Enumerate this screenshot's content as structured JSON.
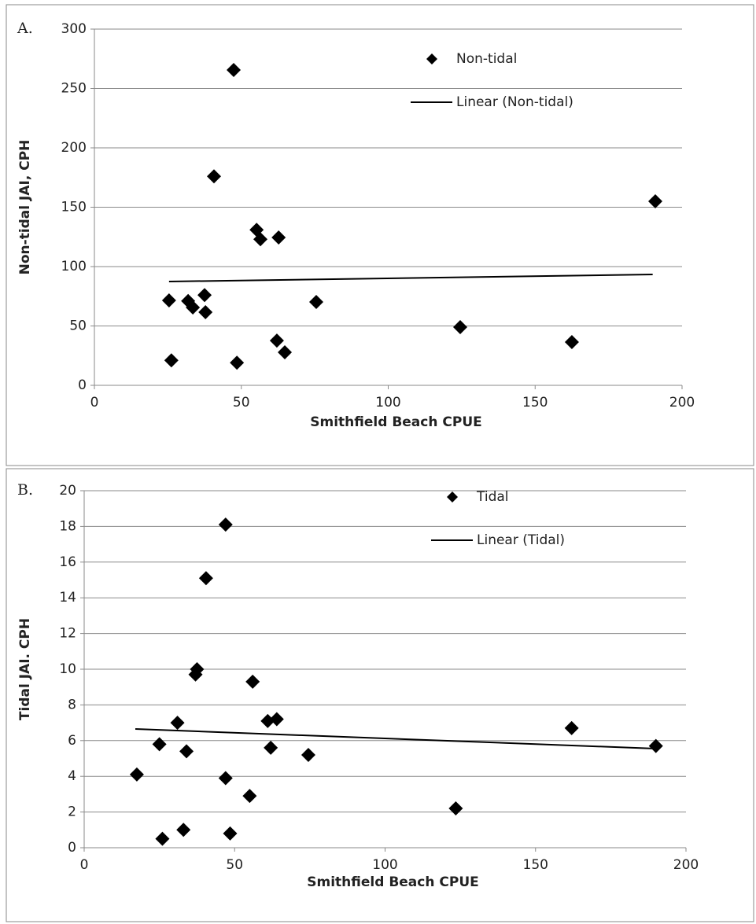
{
  "chart_data": [
    {
      "type": "scatter",
      "panel": "A.",
      "xlabel": "Smithfield Beach CPUE",
      "ylabel": "Non-tidal JAI, CPH",
      "xlim": [
        0,
        200
      ],
      "xticks": [
        0,
        50,
        100,
        150,
        200
      ],
      "ylim": [
        0,
        300
      ],
      "yticks": [
        0,
        50,
        100,
        150,
        200,
        250,
        300
      ],
      "grid": true,
      "series": [
        {
          "name": "Non-tidal",
          "type": "scatter",
          "color": "#000000",
          "x": [
            25.4,
            26.2,
            47.4,
            40.7,
            31.9,
            33.5,
            37.5,
            37.8,
            48.5,
            55.2,
            56.5,
            62.7,
            62.1,
            64.8,
            75.5,
            124.5,
            162.5,
            190.9
          ],
          "values": [
            71.5,
            21,
            265.6,
            176,
            71,
            65.6,
            76,
            61.6,
            19,
            131,
            123,
            124.5,
            37.7,
            27.8,
            70.2,
            49,
            36.4,
            155
          ]
        },
        {
          "name": "Linear (Non-tidal)",
          "type": "line",
          "color": "#000000",
          "x": [
            25.4,
            190
          ],
          "values": [
            87.4,
            93.4
          ]
        }
      ]
    },
    {
      "type": "scatter",
      "panel": "B.",
      "xlabel": "Smithfield Beach CPUE",
      "ylabel": "Tidal JAI. CPH",
      "xlim": [
        0,
        200
      ],
      "xticks": [
        0,
        50,
        100,
        150,
        200
      ],
      "ylim": [
        0,
        20
      ],
      "yticks": [
        0,
        2,
        4,
        6,
        8,
        10,
        12,
        14,
        16,
        18,
        20
      ],
      "grid": true,
      "series": [
        {
          "name": "Tidal",
          "type": "scatter",
          "color": "#000000",
          "x": [
            17.5,
            25,
            26,
            31,
            33,
            34,
            37,
            37.5,
            40.5,
            47,
            47,
            48.5,
            55,
            56,
            61,
            62,
            64,
            74.5,
            123.5,
            162,
            190
          ],
          "values": [
            4.1,
            5.8,
            0.5,
            7.0,
            1.0,
            5.4,
            9.7,
            10.0,
            15.1,
            18.1,
            3.9,
            0.8,
            2.9,
            9.3,
            7.1,
            5.6,
            7.2,
            5.2,
            2.2,
            6.7,
            5.7
          ]
        },
        {
          "name": "Linear (Tidal)",
          "type": "line",
          "color": "#000000",
          "x": [
            17,
            190
          ],
          "values": [
            6.65,
            5.55
          ]
        }
      ]
    }
  ]
}
